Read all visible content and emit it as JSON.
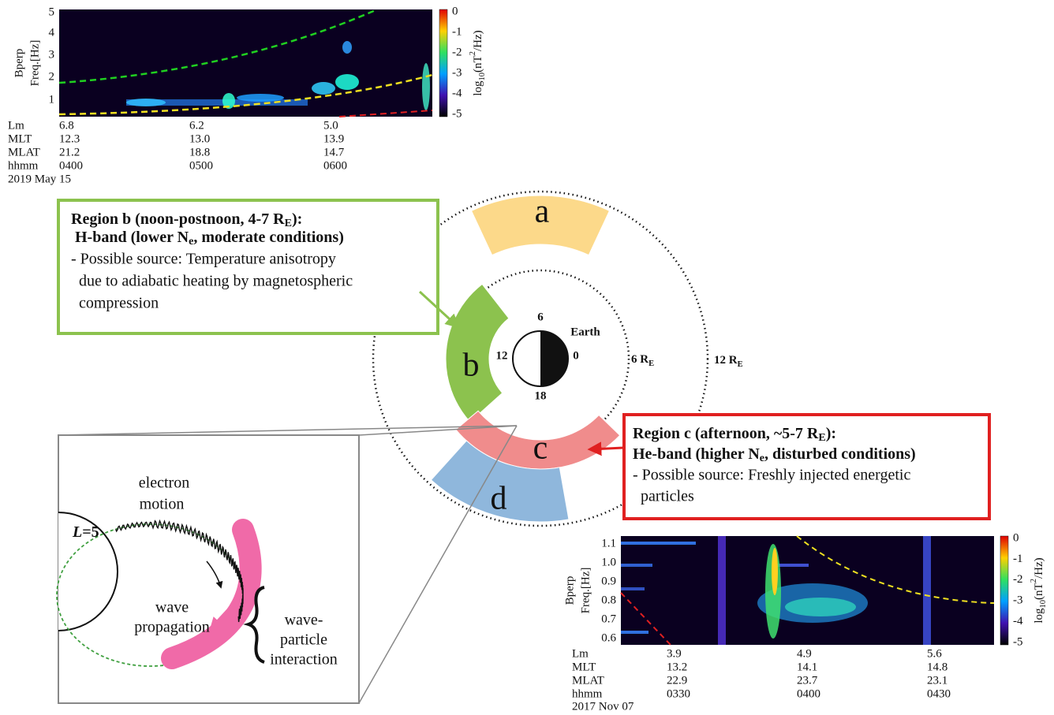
{
  "top_spectrogram": {
    "ylabel": [
      "Bperp",
      "Freq.[Hz]"
    ],
    "yticks": [
      "5",
      "4",
      "3",
      "2",
      "1"
    ],
    "colorbar": {
      "ticks": [
        "0",
        "-1",
        "-2",
        "-3",
        "-4",
        "-5"
      ],
      "label": {
        "text": "log",
        "sub": "10",
        "mid": "(nT",
        "sup": "2",
        "tail": "/Hz)"
      }
    },
    "rows": [
      [
        "Lm",
        "6.8",
        "6.2",
        "5.0"
      ],
      [
        "MLT",
        "12.3",
        "13.0",
        "13.9"
      ],
      [
        "MLAT",
        "21.2",
        "18.8",
        "14.7"
      ],
      [
        "hhmm",
        "0400",
        "0500",
        "0600"
      ]
    ],
    "date": "2019 May 15"
  },
  "bottom_spectrogram": {
    "ylabel": [
      "Bperp",
      "Freq.[Hz]"
    ],
    "yticks": [
      "1.1",
      "1.0",
      "0.9",
      "0.8",
      "0.7",
      "0.6"
    ],
    "colorbar": {
      "ticks": [
        "0",
        "-1",
        "-2",
        "-3",
        "-4",
        "-5"
      ],
      "label": {
        "text": "log",
        "sub": "10",
        "mid": "(nT",
        "sup": "2",
        "tail": "/Hz)"
      }
    },
    "rows": [
      [
        "Lm",
        "3.9",
        "4.9",
        "5.6"
      ],
      [
        "MLT",
        "13.2",
        "14.1",
        "14.8"
      ],
      [
        "MLAT",
        "22.9",
        "23.7",
        "23.1"
      ],
      [
        "hhmm",
        "0330",
        "0400",
        "0430"
      ]
    ],
    "date": "2017 Nov 07"
  },
  "diagram": {
    "regions": [
      "a",
      "b",
      "c",
      "d"
    ],
    "earth": {
      "label": "Earth",
      "mlt": [
        "6",
        "0",
        "18",
        "12"
      ]
    },
    "radii": [
      {
        "text": "6 R",
        "sub": "E"
      },
      {
        "text": "12 R",
        "sub": "E"
      }
    ]
  },
  "box_b": {
    "title": [
      {
        "text": "Region b (noon-postnoon, 4-7 R",
        "sub": "E",
        "tail": "):"
      },
      {
        "text": "H-band (lower N",
        "sub": "e",
        "tail": ", moderate conditions)"
      }
    ],
    "lines": [
      "- Possible source: Temperature anisotropy",
      "due to adiabatic heating by magnetospheric",
      "compression"
    ]
  },
  "box_c": {
    "title": [
      {
        "text": "Region c (afternoon, ~5-7 R",
        "sub": "E",
        "tail": "):"
      },
      {
        "text": "He-band (higher N",
        "sub": "e",
        "tail": ", disturbed conditions)"
      }
    ],
    "lines": [
      "- Possible source: Freshly injected energetic",
      "particles"
    ]
  },
  "inset": {
    "shell": {
      "var": "L",
      "rest": "=5"
    },
    "electron_motion": [
      "electron",
      "motion"
    ],
    "wave_propagation": [
      "wave",
      "propagation"
    ],
    "interaction": [
      "wave-",
      "particle",
      "interaction"
    ]
  }
}
